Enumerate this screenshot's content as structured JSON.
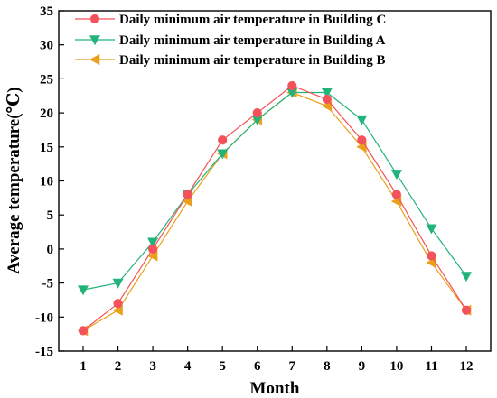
{
  "chart_data": {
    "type": "line",
    "xlabel": "Month",
    "ylabel": "Average temperature(℃)",
    "x": [
      1,
      2,
      3,
      4,
      5,
      6,
      7,
      8,
      9,
      10,
      11,
      12
    ],
    "x_ticks": [
      "1",
      "2",
      "3",
      "4",
      "5",
      "6",
      "7",
      "8",
      "9",
      "10",
      "11",
      "12"
    ],
    "xlim": [
      0.3,
      12.7
    ],
    "ylim": [
      -15,
      35
    ],
    "y_ticks": [
      "-15",
      "-10",
      "-5",
      "0",
      "5",
      "10",
      "15",
      "20",
      "25",
      "30",
      "35"
    ],
    "y_tick_values": [
      -15,
      -10,
      -5,
      0,
      5,
      10,
      15,
      20,
      25,
      30,
      35
    ],
    "grid": false,
    "legend_position": "top-center",
    "series": [
      {
        "name": "Daily minimum air temperature in Building C",
        "values": [
          -12,
          -8,
          0,
          8,
          16,
          20,
          24,
          22,
          16,
          8,
          -1,
          -9
        ],
        "color": "#f4525a",
        "marker": "circle"
      },
      {
        "name": "Daily minimum air temperature in Building A",
        "values": [
          -6,
          -5,
          1,
          8,
          14,
          19,
          23,
          23,
          19,
          11,
          3,
          -4
        ],
        "color": "#22b37a",
        "marker": "triangle-down"
      },
      {
        "name": "Daily minimum air temperature in Building B",
        "values": [
          -12,
          -9,
          -1,
          7,
          14,
          19,
          23,
          21,
          15,
          7,
          -2,
          -9
        ],
        "color": "#e9a11b",
        "marker": "triangle-left"
      }
    ]
  }
}
